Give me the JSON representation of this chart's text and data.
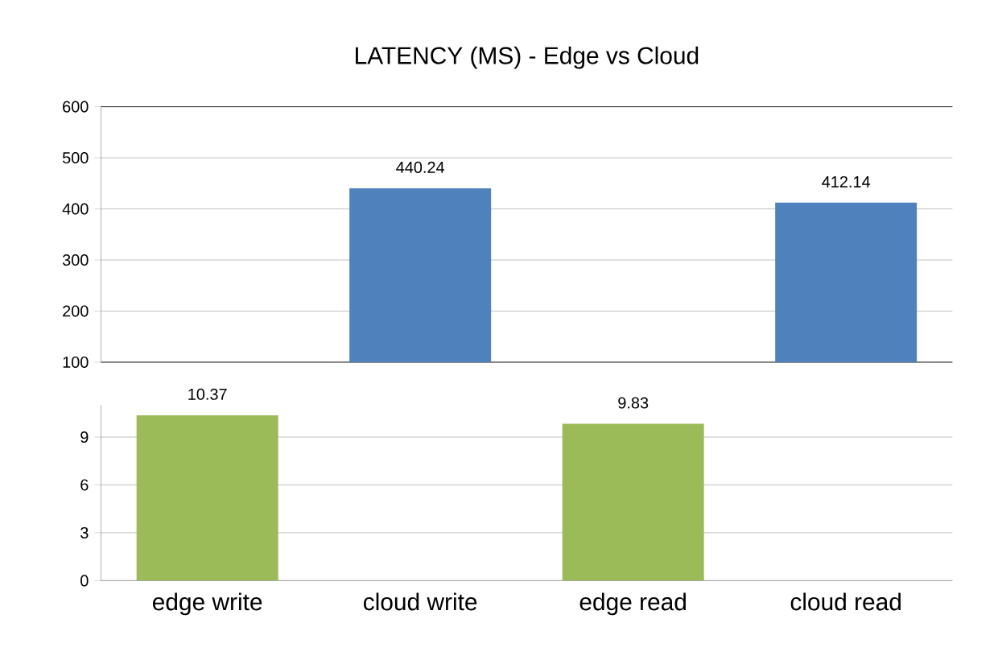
{
  "chart_data": [
    {
      "type": "bar",
      "title": "LATENCY (MS) - Edge vs Cloud",
      "categories": [
        null,
        null,
        null,
        null
      ],
      "values": [
        null,
        440.24,
        null,
        412.14
      ],
      "colors": [
        "#9bbb59",
        "#4f81bd",
        "#9bbb59",
        "#4f81bd"
      ],
      "ylim": [
        100,
        600
      ],
      "yticks": [
        100,
        200,
        300,
        400,
        500,
        600
      ],
      "grid": "y",
      "data_labels": true,
      "tick_labels": "y"
    },
    {
      "type": "bar",
      "categories": [
        "edge write",
        "cloud write",
        "edge read",
        "cloud read"
      ],
      "values": [
        10.37,
        null,
        9.83,
        null
      ],
      "colors": [
        "#9bbb59",
        "#4f81bd",
        "#9bbb59",
        "#4f81bd"
      ],
      "ylim": [
        0,
        11
      ],
      "yticks": [
        0,
        3,
        6,
        9
      ],
      "grid": "y",
      "data_labels": true
    }
  ]
}
